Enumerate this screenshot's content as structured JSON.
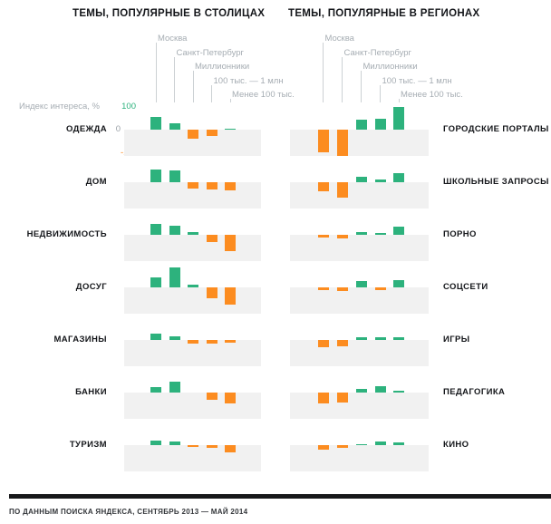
{
  "footer": {
    "source": "ПО ДАННЫМ ПОИСКА ЯНДЕКСА, СЕНТЯБРЬ 2013 — МАЙ 2014"
  },
  "colors": {
    "positive": "#2db27d",
    "negative": "#fc8c20",
    "band": "#f1f1f1",
    "legend_text": "#a6adb3",
    "leader_line": "#ccd1d4",
    "title_text": "#14161a",
    "footer_rule": "#17181a"
  },
  "chart_data": [
    {
      "type": "bar",
      "title": "ТЕМЫ, ПОПУЛЯРНЫЕ В СТОЛИЦАХ",
      "axis": {
        "label": "Индекс интереса, %",
        "max": "100",
        "zero": "0",
        "min": "-100"
      },
      "ylim": [
        -110,
        100
      ],
      "legend_position": "top",
      "grid": false,
      "categories": [
        "Москва",
        "Санкт-Петербург",
        "Миллионники",
        "100 тыс. — 1 млн",
        "Менее 100 тыс."
      ],
      "rows": [
        {
          "topic": "ОДЕЖДА",
          "values": [
            55,
            27,
            -38,
            -25,
            5
          ]
        },
        {
          "topic": "ДОМ",
          "values": [
            54,
            51,
            -26,
            -32,
            -35
          ]
        },
        {
          "topic": "НЕДВИЖИМОСТЬ",
          "values": [
            45,
            38,
            10,
            -30,
            -68
          ]
        },
        {
          "topic": "ДОСУГ",
          "values": [
            44,
            85,
            12,
            -45,
            -74
          ]
        },
        {
          "topic": "МАГАЗИНЫ",
          "values": [
            27,
            17,
            -17,
            -15,
            -12
          ]
        },
        {
          "topic": "БАНКИ",
          "values": [
            24,
            47,
            0,
            -32,
            -45
          ]
        },
        {
          "topic": "ТУРИЗМ",
          "values": [
            18,
            16,
            -7,
            -13,
            -30
          ]
        }
      ]
    },
    {
      "type": "bar",
      "title": "ТЕМЫ, ПОПУЛЯРНЫЕ В РЕГИОНАХ",
      "ylim": [
        -110,
        100
      ],
      "legend_position": "top",
      "grid": false,
      "categories": [
        "Москва",
        "Санкт-Петербург",
        "Миллионники",
        "100 тыс. — 1 млн",
        "Менее 100 тыс."
      ],
      "rows": [
        {
          "topic": "ГОРОДСКИЕ ПОРТАЛЫ",
          "values": [
            -96,
            -110,
            41,
            47,
            95
          ]
        },
        {
          "topic": "ШКОЛЬНЫЕ ЗАПРОСЫ",
          "values": [
            -38,
            -65,
            23,
            12,
            38
          ]
        },
        {
          "topic": "ПОРНО",
          "values": [
            -10,
            -17,
            13,
            8,
            33
          ]
        },
        {
          "topic": "СОЦСЕТИ",
          "values": [
            -10,
            -17,
            28,
            -10,
            30
          ]
        },
        {
          "topic": "ИГРЫ",
          "values": [
            -30,
            -27,
            12,
            11,
            12
          ]
        },
        {
          "topic": "ПЕДАГОГИКА",
          "values": [
            -47,
            -44,
            14,
            26,
            9
          ]
        },
        {
          "topic": "КИНО",
          "values": [
            -20,
            -13,
            5,
            15,
            12
          ]
        }
      ]
    }
  ]
}
